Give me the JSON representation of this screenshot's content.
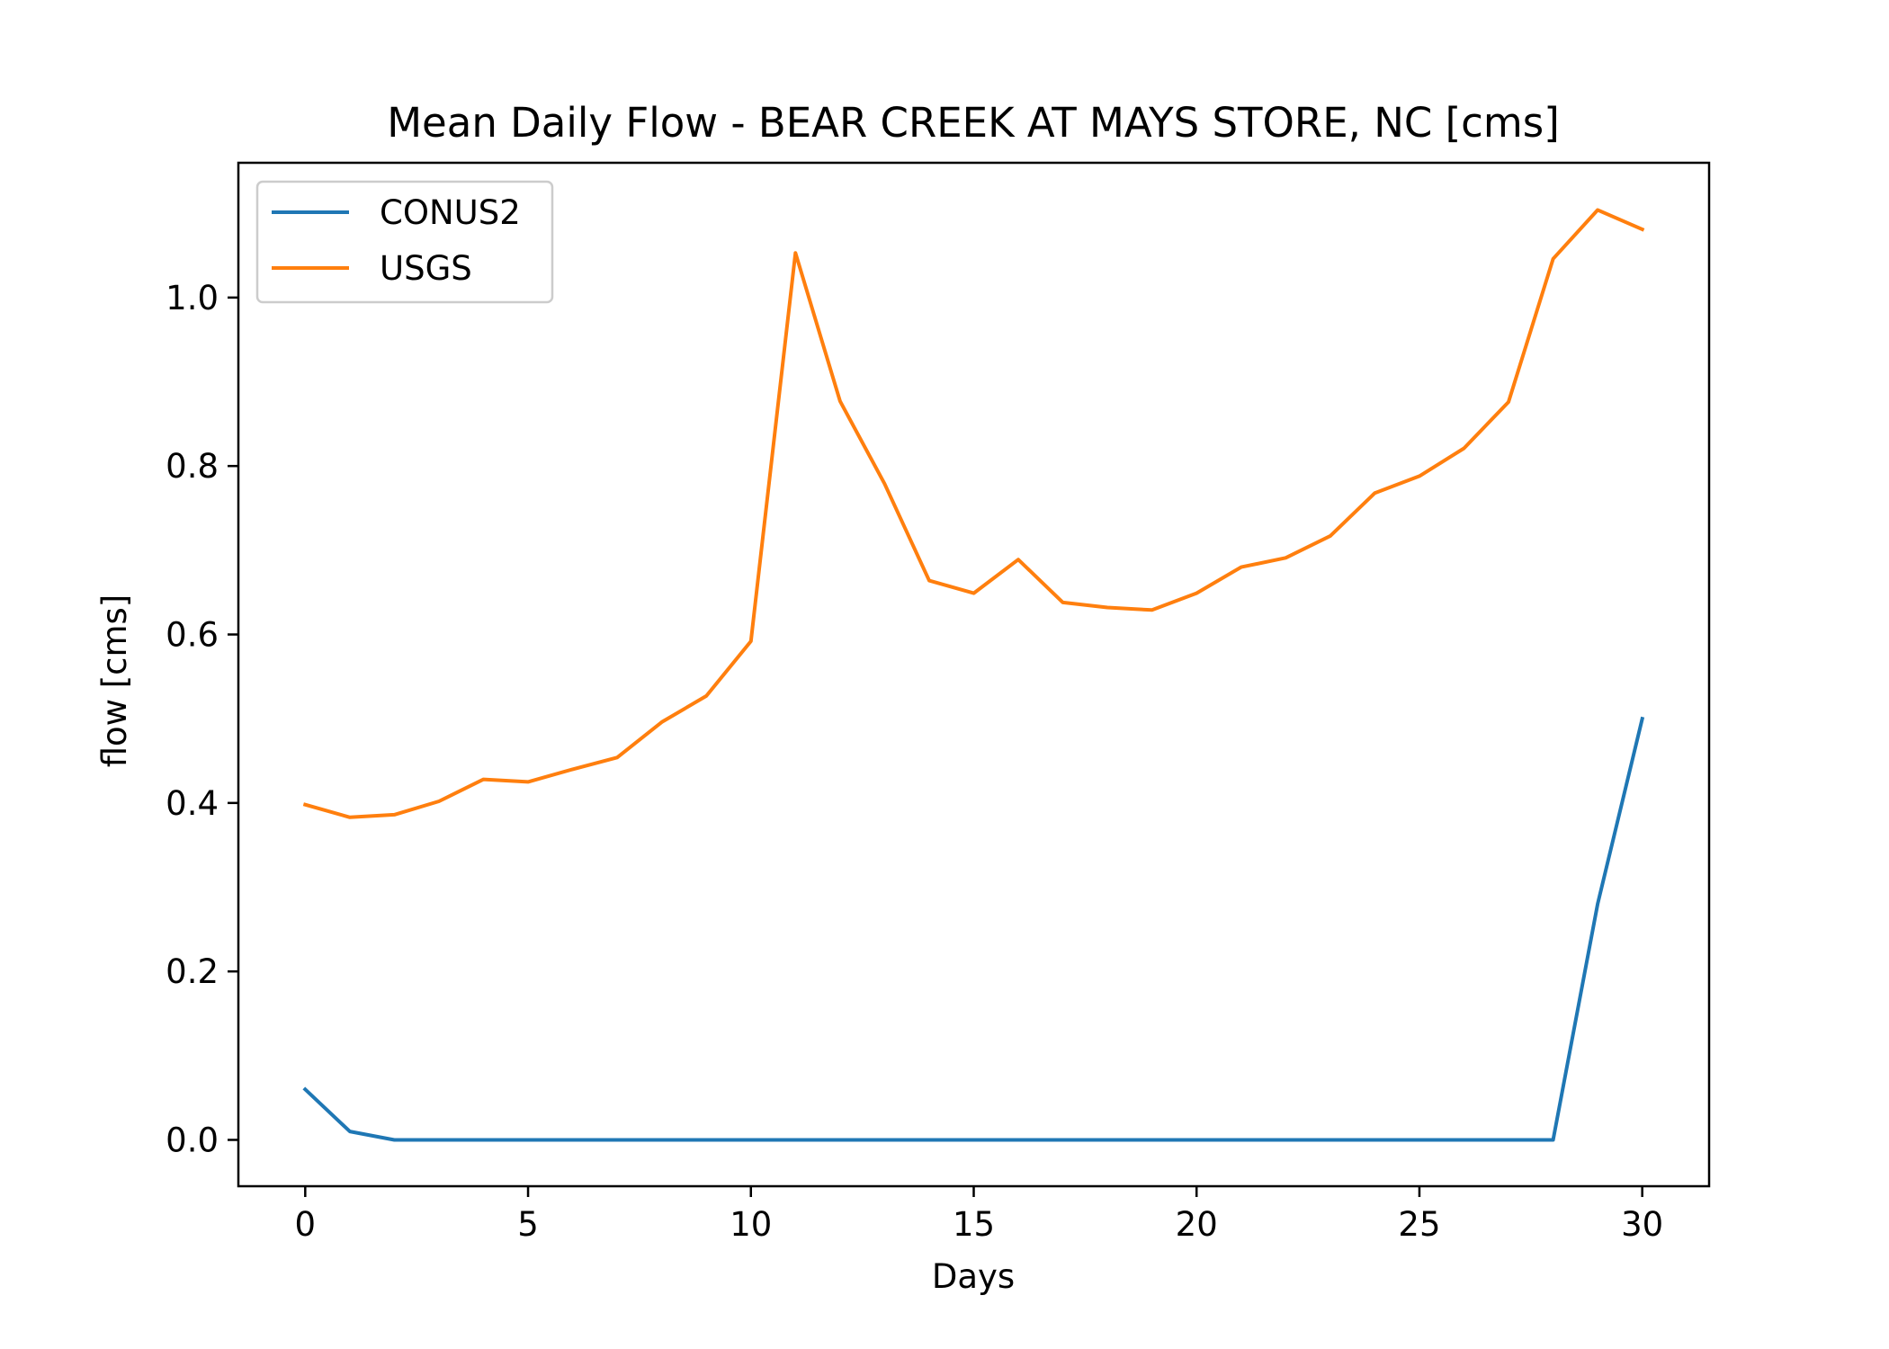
{
  "chart_data": {
    "type": "line",
    "title": "Mean Daily Flow - BEAR CREEK AT MAYS STORE, NC [cms]",
    "xlabel": "Days",
    "ylabel": "flow [cms]",
    "xlim": [
      -1.5,
      31.5
    ],
    "ylim": [
      -0.055,
      1.16
    ],
    "xticks": [
      0,
      5,
      10,
      15,
      20,
      25,
      30
    ],
    "yticks": [
      0.0,
      0.2,
      0.4,
      0.6,
      0.8,
      1.0
    ],
    "ytick_labels": [
      "0.0",
      "0.2",
      "0.4",
      "0.6",
      "0.8",
      "1.0"
    ],
    "grid": false,
    "legend_position": "top-left",
    "x": [
      0,
      1,
      2,
      3,
      4,
      5,
      6,
      7,
      8,
      9,
      10,
      11,
      12,
      13,
      14,
      15,
      16,
      17,
      18,
      19,
      20,
      21,
      22,
      23,
      24,
      25,
      26,
      27,
      28,
      29,
      30
    ],
    "series": [
      {
        "name": "CONUS2",
        "color": "#1f77b4",
        "values": [
          0.06,
          0.01,
          0.0,
          0.0,
          0.0,
          0.0,
          0.0,
          0.0,
          0.0,
          0.0,
          0.0,
          0.0,
          0.0,
          0.0,
          0.0,
          0.0,
          0.0,
          0.0,
          0.0,
          0.0,
          0.0,
          0.0,
          0.0,
          0.0,
          0.0,
          0.0,
          0.0,
          0.0,
          0.0,
          0.28,
          0.5
        ]
      },
      {
        "name": "USGS",
        "color": "#ff7f0e",
        "values": [
          0.398,
          0.383,
          0.386,
          0.402,
          0.428,
          0.425,
          0.44,
          0.454,
          0.496,
          0.527,
          0.592,
          1.053,
          0.877,
          0.779,
          0.664,
          0.649,
          0.689,
          0.638,
          0.632,
          0.629,
          0.649,
          0.68,
          0.691,
          0.717,
          0.768,
          0.788,
          0.821,
          0.876,
          1.046,
          1.104,
          1.081
        ]
      }
    ]
  }
}
